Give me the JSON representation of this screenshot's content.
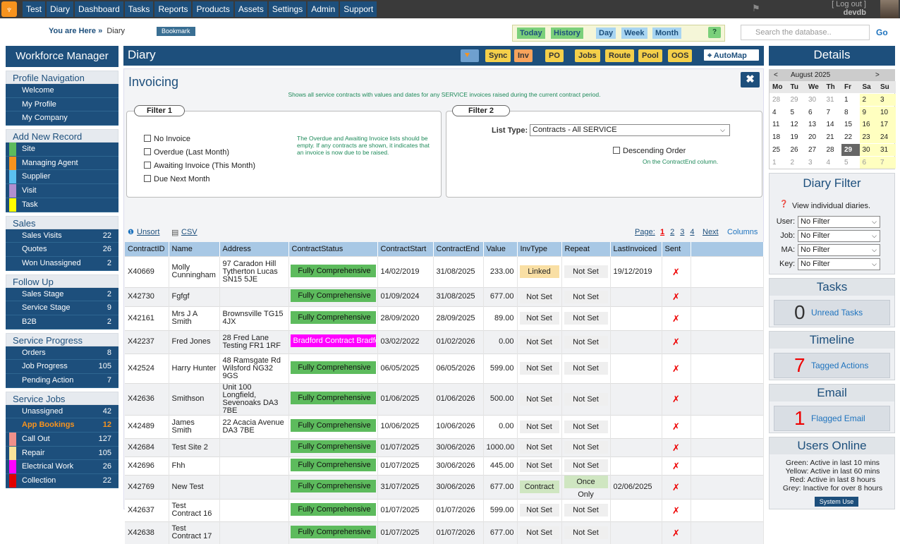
{
  "nav": {
    "items": [
      "Test",
      "Diary",
      "Dashboard",
      "Tasks",
      "Reports",
      "Products",
      "Assets",
      "Settings",
      "Admin",
      "Support"
    ],
    "logout": "[ Log out ]",
    "user": "devdb"
  },
  "subbar": {
    "here_label": "You are Here »",
    "here_value": "Diary",
    "bookmark": "Bookmark",
    "views": [
      "Today",
      "History",
      "Day",
      "Week",
      "Month"
    ],
    "help": "?",
    "search_placeholder": "Search the database..",
    "go": "Go"
  },
  "left": {
    "title": "Workforce Manager",
    "sections": [
      {
        "title": "Profile Navigation",
        "items": [
          {
            "label": "Welcome"
          },
          {
            "label": "My Profile"
          },
          {
            "label": "My Company"
          }
        ]
      },
      {
        "title": "Add New Record",
        "items": [
          {
            "label": "Site",
            "swatch": "#5dbb5d"
          },
          {
            "label": "Managing Agent",
            "swatch": "#f7931e"
          },
          {
            "label": "Supplier",
            "swatch": "#5bc0f0"
          },
          {
            "label": "Visit",
            "swatch": "#b08fcf"
          },
          {
            "label": "Task",
            "swatch": "#ffff00"
          }
        ]
      },
      {
        "title": "Sales",
        "items": [
          {
            "label": "Sales Visits",
            "count": "22"
          },
          {
            "label": "Quotes",
            "count": "26"
          },
          {
            "label": "Won Unassigned",
            "count": "2"
          }
        ]
      },
      {
        "title": "Follow Up",
        "items": [
          {
            "label": "Sales Stage",
            "count": "2"
          },
          {
            "label": "Service Stage",
            "count": "9"
          },
          {
            "label": "B2B",
            "count": "2"
          }
        ]
      },
      {
        "title": "Service Progress",
        "items": [
          {
            "label": "Orders",
            "count": "8"
          },
          {
            "label": "Job Progress",
            "count": "105"
          },
          {
            "label": "Pending Action",
            "count": "7"
          }
        ]
      },
      {
        "title": "Service Jobs",
        "items": [
          {
            "label": "Unassigned",
            "count": "42"
          },
          {
            "label": "App Bookings",
            "count": "12",
            "orange": true
          },
          {
            "label": "Call Out",
            "count": "127",
            "swatch": "#f0908a"
          },
          {
            "label": "Repair",
            "count": "105",
            "swatch": "#f9e39a"
          },
          {
            "label": "Electrical Work",
            "count": "26",
            "swatch": "#ff00ff"
          },
          {
            "label": "Collection",
            "count": "22",
            "swatch": "#e00000"
          }
        ]
      }
    ]
  },
  "diary": {
    "title": "Diary",
    "toolbar": [
      "Sync",
      "Inv",
      "PO",
      "Jobs",
      "Route",
      "Pool",
      "OOS"
    ],
    "automap": "AutoMap"
  },
  "invoicing": {
    "title": "Invoicing",
    "close": "✖",
    "description": "Shows all service contracts with values and dates for any SERVICE invoices raised during the current contract period.",
    "filter1": {
      "title": "Filter 1",
      "options": [
        "No Invoice",
        "Overdue (Last Month)",
        "Awaiting Invoice (This Month)",
        "Due Next Month"
      ],
      "note": "The Overdue and Awaiting Invoice lists should be empty. If any contracts are shown, it indicates that an invoice is now due to be raised."
    },
    "filter2": {
      "title": "Filter 2",
      "list_type_label": "List Type:",
      "list_type_value": "Contracts - All SERVICE",
      "descending": "Descending Order",
      "descending_note": "On the ContractEnd column."
    },
    "links": {
      "unsort": "Unsort",
      "csv": "CSV",
      "page_label": "Page:",
      "pages": [
        "1",
        "2",
        "3",
        "4"
      ],
      "next": "Next",
      "columns": "Columns"
    },
    "columns": [
      "ContractID",
      "Name",
      "Address",
      "ContractStatus",
      "ContractStart",
      "ContractEnd",
      "Value",
      "InvType",
      "Repeat",
      "LastInvoiced",
      "Sent"
    ],
    "rows": [
      {
        "id": "X40669",
        "name": "Molly Cunningham",
        "address": "97 Caradon Hill Tytherton Lucas SN15 5JE",
        "status": "Fully Comprehensive",
        "start": "14/02/2019",
        "end": "31/08/2025",
        "value": "233.00",
        "invtype": "Linked",
        "repeat": "Not Set",
        "last": "19/12/2019",
        "sent": "✗"
      },
      {
        "id": "X42730",
        "name": "Fgfgf",
        "address": "",
        "status": "Fully Comprehensive",
        "start": "01/09/2024",
        "end": "31/08/2025",
        "value": "677.00",
        "invtype": "Not Set",
        "repeat": "Not Set",
        "last": "",
        "sent": "✗"
      },
      {
        "id": "X42161",
        "name": "Mrs J A Smith",
        "address": "Brownsville TG15 4JX",
        "status": "Fully Comprehensive",
        "start": "28/09/2020",
        "end": "28/09/2025",
        "value": "89.00",
        "invtype": "Not Set",
        "repeat": "Not Set",
        "last": "",
        "sent": "✗"
      },
      {
        "id": "X42237",
        "name": "Fred Jones",
        "address": "28 Fred Lane Testing FR1 1RF",
        "status": "Bradford Contract Bradford",
        "start": "03/02/2022",
        "end": "01/02/2026",
        "value": "0.00",
        "invtype": "Not Set",
        "repeat": "Not Set",
        "last": "",
        "sent": "✗"
      },
      {
        "id": "X42524",
        "name": "Harry Hunter",
        "address": "48 Ramsgate Rd Wilsford NG32 9GS",
        "status": "Fully Comprehensive",
        "start": "06/05/2025",
        "end": "06/05/2026",
        "value": "599.00",
        "invtype": "Not Set",
        "repeat": "Not Set",
        "last": "",
        "sent": "✗"
      },
      {
        "id": "X42636",
        "name": "Smithson",
        "address": "Unit 100 Longfield, Sevenoaks DA3 7BE",
        "status": "Fully Comprehensive",
        "start": "01/06/2025",
        "end": "01/06/2026",
        "value": "500.00",
        "invtype": "Not Set",
        "repeat": "Not Set",
        "last": "",
        "sent": "✗"
      },
      {
        "id": "X42489",
        "name": "James Smith",
        "address": "22 Acacia Avenue DA3 7BE",
        "status": "Fully Comprehensive",
        "start": "10/06/2025",
        "end": "10/06/2026",
        "value": "0.00",
        "invtype": "Not Set",
        "repeat": "Not Set",
        "last": "",
        "sent": "✗"
      },
      {
        "id": "X42684",
        "name": "Test Site 2",
        "address": "",
        "status": "Fully Comprehensive",
        "start": "01/07/2025",
        "end": "30/06/2026",
        "value": "1000.00",
        "invtype": "Not Set",
        "repeat": "Not Set",
        "last": "",
        "sent": "✗"
      },
      {
        "id": "X42696",
        "name": "Fhh",
        "address": "",
        "status": "Fully Comprehensive",
        "start": "01/07/2025",
        "end": "30/06/2026",
        "value": "445.00",
        "invtype": "Not Set",
        "repeat": "Not Set",
        "last": "",
        "sent": "✗"
      },
      {
        "id": "X42769",
        "name": "New Test",
        "address": "",
        "status": "Fully Comprehensive",
        "start": "31/07/2025",
        "end": "30/06/2026",
        "value": "677.00",
        "invtype": "Contract",
        "repeat": "Once Only",
        "last": "02/06/2025",
        "sent": "✗"
      },
      {
        "id": "X42637",
        "name": "Test Contract 16",
        "address": "",
        "status": "Fully Comprehensive",
        "start": "01/07/2025",
        "end": "01/07/2026",
        "value": "599.00",
        "invtype": "Not Set",
        "repeat": "Not Set",
        "last": "",
        "sent": "✗"
      },
      {
        "id": "X42638",
        "name": "Test Contract 17",
        "address": "",
        "status": "Fully Comprehensive",
        "start": "01/07/2025",
        "end": "01/07/2026",
        "value": "677.00",
        "invtype": "Not Set",
        "repeat": "Not Set",
        "last": "",
        "sent": "✗"
      }
    ]
  },
  "details": {
    "title": "Details",
    "calendar": {
      "prev": "<",
      "month": "August 2025",
      "next": ">",
      "dows": [
        "Mo",
        "Tu",
        "We",
        "Th",
        "Fr",
        "Sa",
        "Su"
      ],
      "weeks": [
        [
          "28",
          "29",
          "30",
          "31",
          "1",
          "2",
          "3"
        ],
        [
          "4",
          "5",
          "6",
          "7",
          "8",
          "9",
          "10"
        ],
        [
          "11",
          "12",
          "13",
          "14",
          "15",
          "16",
          "17"
        ],
        [
          "18",
          "19",
          "20",
          "21",
          "22",
          "23",
          "24"
        ],
        [
          "25",
          "26",
          "27",
          "28",
          "29",
          "30",
          "31"
        ],
        [
          "1",
          "2",
          "3",
          "4",
          "5",
          "6",
          "7"
        ]
      ],
      "today": "29"
    },
    "diary_filter": {
      "title": "Diary Filter",
      "subtitle": "View individual diaries.",
      "fields": [
        {
          "label": "User:",
          "value": "No Filter"
        },
        {
          "label": "Job:",
          "value": "No Filter"
        },
        {
          "label": "MA:",
          "value": "No Filter"
        },
        {
          "label": "Key:",
          "value": "No Filter"
        }
      ]
    },
    "tasks": {
      "title": "Tasks",
      "count": "0",
      "link": "Unread Tasks"
    },
    "timeline": {
      "title": "Timeline",
      "count": "7",
      "link": "Tagged Actions"
    },
    "email": {
      "title": "Email",
      "count": "1",
      "link": "Flagged Email"
    },
    "users_online": {
      "title": "Users Online",
      "lines": [
        "Green: Active in last 10 mins",
        "Yellow: Active in last 60 mins",
        "Red: Active in last 8 hours",
        "Grey: Inactive for over 8 hours"
      ],
      "button": "System Use"
    }
  }
}
